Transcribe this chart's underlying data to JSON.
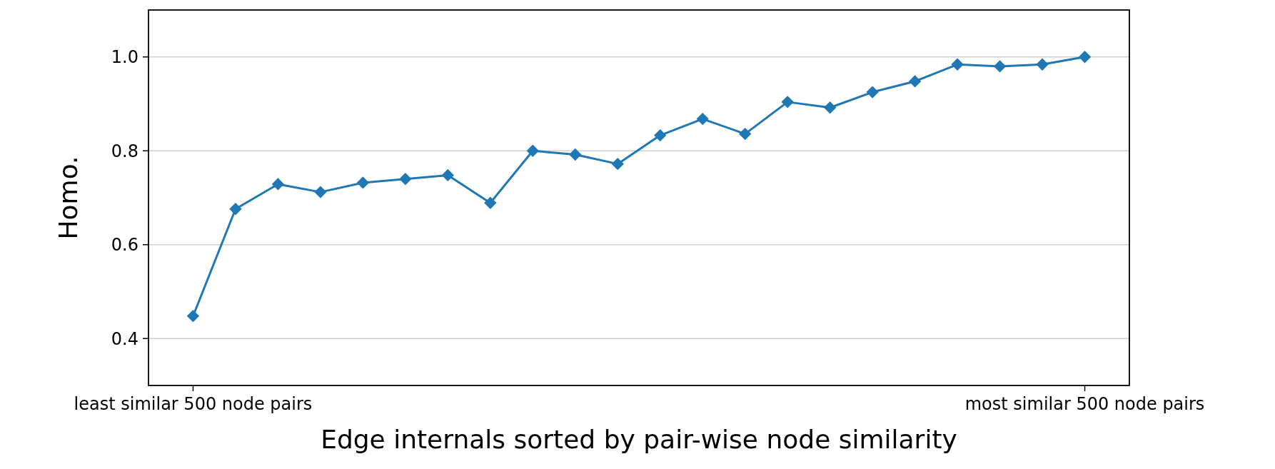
{
  "chart_data": {
    "type": "line",
    "xlabel": "Edge internals sorted by pair-wise node similarity",
    "ylabel": "Homo.",
    "categories": [
      "least similar 500 node pairs",
      null,
      null,
      null,
      null,
      null,
      null,
      null,
      null,
      null,
      null,
      null,
      null,
      null,
      null,
      null,
      null,
      null,
      null,
      null,
      null,
      "most similar 500 node pairs"
    ],
    "series": [
      {
        "color": "#1f77b4",
        "values": [
          0.448,
          0.676,
          0.729,
          0.712,
          0.732,
          0.74,
          0.748,
          0.689,
          0.8,
          0.792,
          0.772,
          0.833,
          0.868,
          0.836,
          0.904,
          0.892,
          0.925,
          0.948,
          0.984,
          0.98,
          0.984,
          1.0
        ]
      }
    ],
    "ylim": [
      0.3,
      1.1
    ],
    "yticks": [
      {
        "value": 0.4,
        "label": "0.4"
      },
      {
        "value": 0.6,
        "label": "0.6"
      },
      {
        "value": 0.8,
        "label": "0.8"
      },
      {
        "value": 1.0,
        "label": "1.0"
      }
    ],
    "grid": "y",
    "marker": "diamond",
    "line_style": "solid"
  }
}
